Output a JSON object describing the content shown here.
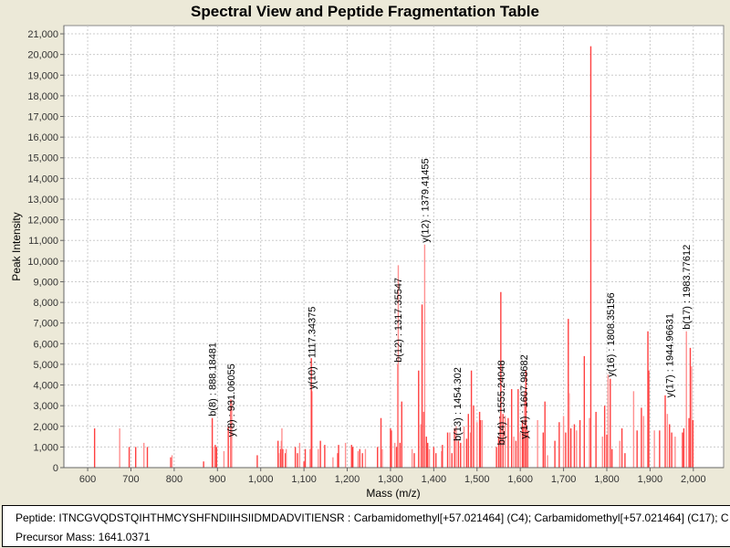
{
  "chart_data": {
    "type": "bar",
    "title": "Spectral View and Peptide Fragmentation Table",
    "xlabel": "Mass (m/z)",
    "ylabel": "Peak Intensity",
    "xlim": [
      545,
      2070
    ],
    "ylim": [
      0,
      21400
    ],
    "grid": true,
    "x_ticks": [
      600,
      700,
      800,
      900,
      1000,
      1100,
      1200,
      1300,
      1400,
      1500,
      1600,
      1700,
      1800,
      1900,
      2000
    ],
    "x_tick_labels": [
      "600",
      "700",
      "800",
      "900",
      "1,000",
      "1,100",
      "1,200",
      "1,300",
      "1,400",
      "1,500",
      "1,600",
      "1,700",
      "1,800",
      "1,900",
      "2,000"
    ],
    "y_ticks": [
      0,
      1000,
      2000,
      3000,
      4000,
      5000,
      6000,
      7000,
      8000,
      9000,
      10000,
      11000,
      12000,
      13000,
      14000,
      15000,
      16000,
      17000,
      18000,
      19000,
      20000,
      21000
    ],
    "y_tick_labels": [
      "0",
      "1,000",
      "2,000",
      "3,000",
      "4,000",
      "5,000",
      "6,000",
      "7,000",
      "8,000",
      "9,000",
      "10,000",
      "11,000",
      "12,000",
      "13,000",
      "14,000",
      "15,000",
      "16,000",
      "17,000",
      "18,000",
      "19,000",
      "20,000",
      "21,000"
    ],
    "peaks": [
      [
        616,
        1900
      ],
      [
        674,
        1900
      ],
      [
        696,
        1000
      ],
      [
        711,
        1000
      ],
      [
        730,
        1200
      ],
      [
        738,
        1000
      ],
      [
        792,
        500
      ],
      [
        795,
        600
      ],
      [
        868,
        300
      ],
      [
        888,
        2400
      ],
      [
        890,
        1000
      ],
      [
        895,
        1100
      ],
      [
        898,
        1000
      ],
      [
        915,
        800
      ],
      [
        925,
        2000
      ],
      [
        931,
        3300
      ],
      [
        933,
        3200
      ],
      [
        992,
        600
      ],
      [
        1040,
        1300
      ],
      [
        1042,
        700
      ],
      [
        1046,
        900
      ],
      [
        1048,
        1300
      ],
      [
        1049,
        1900
      ],
      [
        1051,
        900
      ],
      [
        1057,
        700
      ],
      [
        1059,
        900
      ],
      [
        1080,
        1000
      ],
      [
        1085,
        700
      ],
      [
        1090,
        1200
      ],
      [
        1100,
        300
      ],
      [
        1103,
        900
      ],
      [
        1114,
        900
      ],
      [
        1117,
        5300
      ],
      [
        1118,
        3700
      ],
      [
        1133,
        900
      ],
      [
        1138,
        1300
      ],
      [
        1148,
        1100
      ],
      [
        1167,
        500
      ],
      [
        1178,
        700
      ],
      [
        1180,
        1100
      ],
      [
        1196,
        1200
      ],
      [
        1210,
        1100
      ],
      [
        1213,
        1000
      ],
      [
        1225,
        800
      ],
      [
        1229,
        900
      ],
      [
        1235,
        700
      ],
      [
        1242,
        900
      ],
      [
        1270,
        1000
      ],
      [
        1278,
        2400
      ],
      [
        1281,
        900
      ],
      [
        1300,
        1900
      ],
      [
        1302,
        1800
      ],
      [
        1310,
        1200
      ],
      [
        1314,
        1000
      ],
      [
        1317,
        5000
      ],
      [
        1318,
        9800
      ],
      [
        1322,
        1200
      ],
      [
        1326,
        3200
      ],
      [
        1350,
        900
      ],
      [
        1355,
        700
      ],
      [
        1365,
        4700
      ],
      [
        1370,
        2100
      ],
      [
        1373,
        7900
      ],
      [
        1377,
        2700
      ],
      [
        1379,
        10800
      ],
      [
        1383,
        1500
      ],
      [
        1386,
        1200
      ],
      [
        1390,
        900
      ],
      [
        1400,
        1000
      ],
      [
        1405,
        700
      ],
      [
        1418,
        800
      ],
      [
        1420,
        1100
      ],
      [
        1432,
        1700
      ],
      [
        1437,
        1700
      ],
      [
        1442,
        700
      ],
      [
        1448,
        1900
      ],
      [
        1452,
        2000
      ],
      [
        1457,
        1300
      ],
      [
        1462,
        1200
      ],
      [
        1470,
        2000
      ],
      [
        1476,
        1400
      ],
      [
        1480,
        2600
      ],
      [
        1485,
        1700
      ],
      [
        1487,
        4700
      ],
      [
        1492,
        3000
      ],
      [
        1500,
        2200
      ],
      [
        1506,
        2700
      ],
      [
        1508,
        2300
      ],
      [
        1512,
        2300
      ],
      [
        1545,
        1000
      ],
      [
        1550,
        1500
      ],
      [
        1553,
        2500
      ],
      [
        1555,
        8500
      ],
      [
        1560,
        2600
      ],
      [
        1565,
        2500
      ],
      [
        1572,
        2400
      ],
      [
        1580,
        3800
      ],
      [
        1585,
        1500
      ],
      [
        1590,
        1300
      ],
      [
        1595,
        3800
      ],
      [
        1600,
        1700
      ],
      [
        1605,
        2300
      ],
      [
        1608,
        2000
      ],
      [
        1610,
        3700
      ],
      [
        1613,
        4700
      ],
      [
        1617,
        1800
      ],
      [
        1640,
        2300
      ],
      [
        1653,
        1700
      ],
      [
        1657,
        3200
      ],
      [
        1663,
        600
      ],
      [
        1680,
        1300
      ],
      [
        1690,
        2200
      ],
      [
        1700,
        2500
      ],
      [
        1705,
        1700
      ],
      [
        1711,
        7200
      ],
      [
        1713,
        3600
      ],
      [
        1717,
        1900
      ],
      [
        1725,
        2100
      ],
      [
        1730,
        1800
      ],
      [
        1738,
        2300
      ],
      [
        1748,
        5400
      ],
      [
        1760,
        2400
      ],
      [
        1763,
        20400
      ],
      [
        1775,
        2700
      ],
      [
        1790,
        1500
      ],
      [
        1795,
        3000
      ],
      [
        1800,
        1600
      ],
      [
        1803,
        4500
      ],
      [
        1808,
        4300
      ],
      [
        1812,
        900
      ],
      [
        1830,
        1300
      ],
      [
        1835,
        1900
      ],
      [
        1842,
        700
      ],
      [
        1862,
        3700
      ],
      [
        1870,
        1800
      ],
      [
        1880,
        2900
      ],
      [
        1885,
        2500
      ],
      [
        1895,
        6600
      ],
      [
        1897,
        4700
      ],
      [
        1910,
        1800
      ],
      [
        1922,
        1800
      ],
      [
        1935,
        3500
      ],
      [
        1940,
        2600
      ],
      [
        1945,
        2100
      ],
      [
        1950,
        1700
      ],
      [
        1958,
        1500
      ],
      [
        1975,
        1700
      ],
      [
        1978,
        1900
      ],
      [
        1984,
        6600
      ],
      [
        1990,
        2400
      ],
      [
        1993,
        5800
      ],
      [
        1996,
        4900
      ],
      [
        1999,
        2300
      ]
    ],
    "annotations": [
      {
        "label": "b(8) : 888.18481",
        "mz": 888.18481,
        "intensity": 2400
      },
      {
        "label": "y(8) : 931.06055",
        "mz": 931.06055,
        "intensity": 1400
      },
      {
        "label": "y(10) : 1117.34375",
        "mz": 1117.34375,
        "intensity": 3700
      },
      {
        "label": "b(12) : 1317.35547",
        "mz": 1317.35547,
        "intensity": 5000
      },
      {
        "label": "y(12) : 1379.41455",
        "mz": 1379.41455,
        "intensity": 10800
      },
      {
        "label": "b(13) : 1454.302",
        "mz": 1454.302,
        "intensity": 1200
      },
      {
        "label": "b(14) : 1555.24048",
        "mz": 1555.24048,
        "intensity": 1000
      },
      {
        "label": "y(14) : 1607.98682",
        "mz": 1607.98682,
        "intensity": 1300
      },
      {
        "label": "y(16) : 1808.35156",
        "mz": 1808.35156,
        "intensity": 4300
      },
      {
        "label": "y(17) : 1944.96631",
        "mz": 1944.96631,
        "intensity": 3300
      },
      {
        "label": "b(17) : 1983.77612",
        "mz": 1983.77612,
        "intensity": 6600
      }
    ],
    "colors": {
      "peak": "#ff4040",
      "peak_light": "#ff9090",
      "grid": "#cccccc"
    }
  },
  "info": {
    "peptide": "Peptide: ITNCGVQDSTQIHTHMCYSHFNDIIHSIIDMDADVITIENSR : Carbamidomethyl[+57.021464] (C4); Carbamidomethyl[+57.021464] (C17); C",
    "precursor": "Precursor Mass: 1641.0371"
  }
}
